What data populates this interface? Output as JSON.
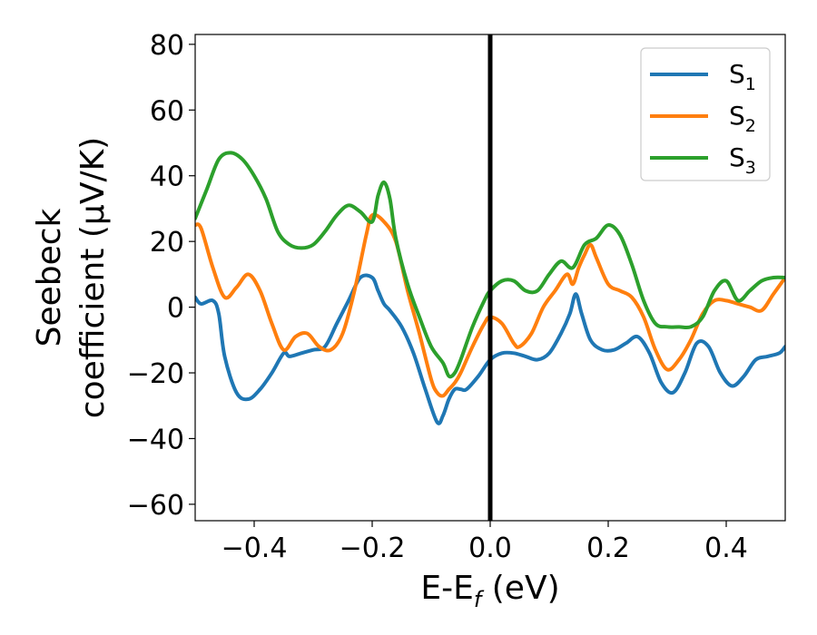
{
  "chart_data": {
    "type": "line",
    "title": "",
    "xlabel": {
      "main": "E-E",
      "sub": "f",
      "tail": " (eV)"
    },
    "ylabel": {
      "line1": "Seebeck",
      "line2": "coefficient  (μV/K)"
    },
    "xlim": [
      -0.5,
      0.5
    ],
    "ylim": [
      -65,
      83
    ],
    "xticks": [
      -0.4,
      -0.2,
      0.0,
      0.2,
      0.4
    ],
    "xtick_labels": [
      "−0.4",
      "−0.2",
      "0.0",
      "0.2",
      "0.4"
    ],
    "yticks": [
      -60,
      -40,
      -20,
      0,
      20,
      40,
      60,
      80
    ],
    "ytick_labels": [
      "−60",
      "−40",
      "−20",
      "0",
      "20",
      "40",
      "60",
      "80"
    ],
    "grid": false,
    "legend_position": "top-right",
    "vertical_line": {
      "x": 0.0,
      "color": "#000000"
    },
    "series": [
      {
        "name": "S",
        "name_sub": "1",
        "color": "#1f77b4",
        "x": [
          -0.5,
          -0.49,
          -0.47,
          -0.46,
          -0.45,
          -0.43,
          -0.41,
          -0.39,
          -0.37,
          -0.35,
          -0.34,
          -0.32,
          -0.3,
          -0.28,
          -0.26,
          -0.24,
          -0.22,
          -0.2,
          -0.19,
          -0.18,
          -0.17,
          -0.15,
          -0.13,
          -0.11,
          -0.09,
          -0.08,
          -0.07,
          -0.06,
          -0.05,
          -0.04,
          -0.02,
          0.0,
          0.02,
          0.04,
          0.06,
          0.08,
          0.1,
          0.12,
          0.135,
          0.145,
          0.155,
          0.17,
          0.19,
          0.21,
          0.23,
          0.25,
          0.27,
          0.29,
          0.31,
          0.33,
          0.35,
          0.37,
          0.39,
          0.41,
          0.43,
          0.45,
          0.47,
          0.49,
          0.5
        ],
        "y": [
          3,
          1,
          2,
          -2,
          -15,
          -26,
          -28,
          -25,
          -20,
          -14,
          -15,
          -14,
          -13,
          -12,
          -5,
          2,
          9,
          9,
          5,
          1,
          -1,
          -6,
          -14,
          -25,
          -35,
          -33,
          -28,
          -25,
          -25,
          -25,
          -21,
          -16,
          -14,
          -14,
          -15,
          -16,
          -14,
          -8,
          -2,
          4,
          -2,
          -10,
          -13,
          -13,
          -11,
          -9,
          -14,
          -23,
          -26,
          -20,
          -11,
          -12,
          -20,
          -24,
          -21,
          -16,
          -15,
          -14,
          -12
        ]
      },
      {
        "name": "S",
        "name_sub": "2",
        "color": "#ff7f0e",
        "x": [
          -0.5,
          -0.49,
          -0.47,
          -0.45,
          -0.43,
          -0.41,
          -0.39,
          -0.37,
          -0.35,
          -0.33,
          -0.31,
          -0.29,
          -0.27,
          -0.25,
          -0.23,
          -0.21,
          -0.2,
          -0.18,
          -0.16,
          -0.14,
          -0.12,
          -0.1,
          -0.09,
          -0.08,
          -0.07,
          -0.06,
          -0.05,
          -0.03,
          -0.01,
          0.0,
          0.02,
          0.04,
          0.05,
          0.07,
          0.09,
          0.11,
          0.13,
          0.14,
          0.15,
          0.16,
          0.17,
          0.18,
          0.2,
          0.22,
          0.24,
          0.26,
          0.28,
          0.3,
          0.32,
          0.34,
          0.36,
          0.38,
          0.4,
          0.42,
          0.44,
          0.46,
          0.48,
          0.5
        ],
        "y": [
          25,
          24,
          12,
          3,
          6,
          10,
          5,
          -5,
          -13,
          -9,
          -8,
          -12,
          -13,
          -8,
          5,
          22,
          28,
          26,
          20,
          5,
          -8,
          -22,
          -26,
          -27,
          -25,
          -23,
          -20,
          -12,
          -5,
          -3,
          -5,
          -11,
          -12,
          -8,
          0,
          5,
          10,
          7,
          12,
          16,
          19,
          15,
          7,
          5,
          3,
          -3,
          -13,
          -19,
          -16,
          -10,
          -2,
          2,
          2,
          1,
          0,
          -1,
          4,
          9
        ]
      },
      {
        "name": "S",
        "name_sub": "3",
        "color": "#2ca02c",
        "x": [
          -0.5,
          -0.48,
          -0.46,
          -0.44,
          -0.42,
          -0.4,
          -0.38,
          -0.36,
          -0.34,
          -0.32,
          -0.3,
          -0.28,
          -0.26,
          -0.24,
          -0.22,
          -0.2,
          -0.19,
          -0.18,
          -0.17,
          -0.16,
          -0.14,
          -0.12,
          -0.1,
          -0.08,
          -0.07,
          -0.06,
          -0.05,
          -0.03,
          -0.01,
          0.0,
          0.02,
          0.04,
          0.06,
          0.08,
          0.1,
          0.12,
          0.14,
          0.16,
          0.18,
          0.2,
          0.22,
          0.24,
          0.26,
          0.28,
          0.3,
          0.32,
          0.34,
          0.36,
          0.38,
          0.4,
          0.42,
          0.44,
          0.46,
          0.48,
          0.5
        ],
        "y": [
          27,
          36,
          45,
          47,
          45,
          40,
          33,
          23,
          19,
          18,
          19,
          23,
          28,
          31,
          29,
          26,
          34,
          38,
          33,
          21,
          7,
          -3,
          -12,
          -17,
          -21,
          -20,
          -16,
          -6,
          2,
          5,
          8,
          8,
          5,
          5,
          10,
          14,
          12,
          19,
          21,
          25,
          22,
          13,
          2,
          -5,
          -6,
          -6,
          -6,
          -3,
          5,
          8,
          2,
          5,
          8,
          9,
          9
        ]
      }
    ]
  }
}
